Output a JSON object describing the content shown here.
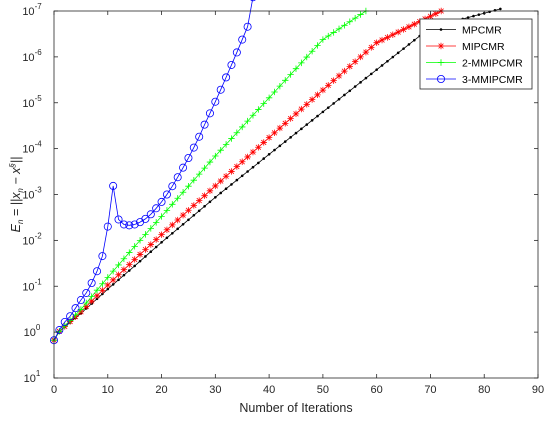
{
  "chart_data": {
    "type": "line",
    "xlabel": "Number of Iterations",
    "ylabel": {
      "main": "E",
      "sub": "n",
      "eq": " = ||x",
      "sub2": "n",
      "mid": " − x",
      "sup2": "§",
      "end": "||"
    },
    "xlim": [
      0,
      90
    ],
    "ylim_exp": [
      -7,
      1
    ],
    "yscale": "log",
    "grid": false,
    "legend_position": "top-right",
    "x_ticks": [
      "0",
      "10",
      "20",
      "30",
      "40",
      "50",
      "60",
      "70",
      "80",
      "90"
    ],
    "y_tick_base": "10",
    "y_tick_exponents": [
      "1",
      "0",
      "-1",
      "-2",
      "-3",
      "-4",
      "-5",
      "-6",
      "-7"
    ],
    "series": [
      {
        "name": "MPCMR",
        "color": "#000000",
        "marker": "dot",
        "points": [
          [
            0,
            1.5
          ],
          [
            1,
            0.97
          ],
          [
            5,
            0.39
          ],
          [
            10,
            0.115
          ],
          [
            15,
            0.036
          ],
          [
            20,
            0.011
          ],
          [
            30,
            0.00115
          ],
          [
            40,
            0.000133
          ],
          [
            50,
            1.58e-05
          ],
          [
            60,
            1.9e-06
          ],
          [
            70,
            2.3e-07
          ],
          [
            83,
            9e-08
          ]
        ]
      },
      {
        "name": "MIPCMR",
        "color": "#ff0000",
        "marker": "asterisk",
        "points": [
          [
            0,
            1.5
          ],
          [
            1,
            0.96
          ],
          [
            5,
            0.36
          ],
          [
            10,
            0.094
          ],
          [
            15,
            0.026
          ],
          [
            20,
            0.0075
          ],
          [
            30,
            0.00065
          ],
          [
            40,
            5.75e-05
          ],
          [
            50,
            5.3e-06
          ],
          [
            60,
            4.9e-07
          ],
          [
            72,
            1e-07
          ]
        ]
      },
      {
        "name": "2-MMIPCMR",
        "color": "#00ff00",
        "marker": "plus",
        "points": [
          [
            0,
            1.5
          ],
          [
            1,
            0.96
          ],
          [
            5,
            0.32
          ],
          [
            10,
            0.064
          ],
          [
            15,
            0.0135
          ],
          [
            20,
            0.003
          ],
          [
            30,
            0.000145
          ],
          [
            40,
            7.8e-06
          ],
          [
            50,
            4.2e-07
          ],
          [
            58,
            1e-07
          ]
        ]
      },
      {
        "name": "3-MMIPCMR",
        "color": "#0000ff",
        "marker": "circle",
        "points": [
          [
            0,
            1.5
          ],
          [
            1,
            0.9
          ],
          [
            2,
            0.6
          ],
          [
            3,
            0.45
          ],
          [
            4,
            0.3
          ],
          [
            5,
            0.2
          ],
          [
            6,
            0.14
          ],
          [
            7,
            0.085
          ],
          [
            8,
            0.047
          ],
          [
            9,
            0.022
          ],
          [
            10,
            0.005
          ],
          [
            11,
            0.00065
          ],
          [
            12,
            0.0035
          ],
          [
            13,
            0.0045
          ],
          [
            14,
            0.0047
          ],
          [
            15,
            0.0045
          ],
          [
            16,
            0.004
          ],
          [
            17,
            0.0034
          ],
          [
            18,
            0.0027
          ],
          [
            19,
            0.002
          ],
          [
            20,
            0.00145
          ],
          [
            21,
            0.001
          ],
          [
            22,
            0.00066
          ],
          [
            23,
            0.00042
          ],
          [
            24,
            0.00026
          ],
          [
            25,
            0.00016
          ],
          [
            26,
            9.5e-05
          ],
          [
            27,
            5.5e-05
          ],
          [
            28,
            3e-05
          ],
          [
            29,
            1.7e-05
          ],
          [
            30,
            9.5e-06
          ],
          [
            31,
            5.2e-06
          ],
          [
            32,
            2.8e-06
          ],
          [
            33,
            1.5e-06
          ],
          [
            34,
            8e-07
          ],
          [
            35,
            4.2e-07
          ],
          [
            36,
            2.2e-07
          ],
          [
            37,
            5e-08
          ]
        ]
      }
    ]
  }
}
